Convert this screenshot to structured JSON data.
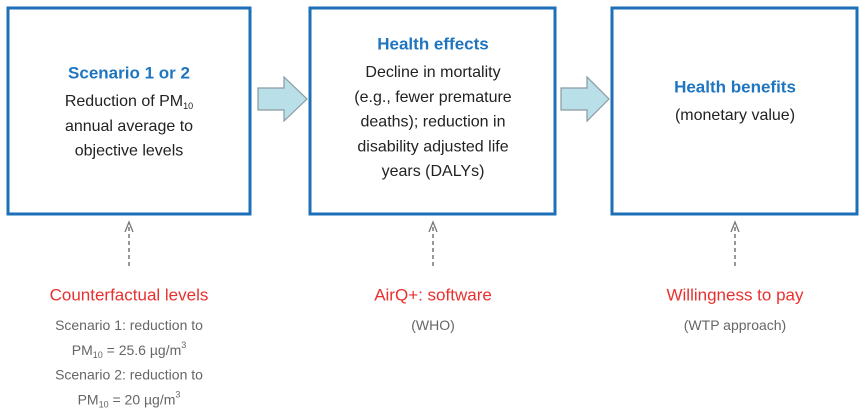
{
  "boxes": [
    {
      "title": "Scenario 1 or 2",
      "lines": [
        {
          "text": "Reduction of PM",
          "sub": "10"
        },
        {
          "text": "annual average to"
        },
        {
          "text": "objective levels"
        }
      ]
    },
    {
      "title": "Health effects",
      "lines": [
        {
          "text": "Decline in mortality"
        },
        {
          "text": "(e.g., fewer premature"
        },
        {
          "text": "deaths); reduction in"
        },
        {
          "text": "disability adjusted life"
        },
        {
          "text": "years (DALYs)"
        }
      ]
    },
    {
      "title": "Health benefits",
      "lines": [
        {
          "text": "(monetary value)"
        }
      ]
    }
  ],
  "inputs": [
    {
      "label": "Counterfactual levels",
      "notes": [
        {
          "text": "Scenario 1: reduction to"
        },
        {
          "text": "PM",
          "sub": "10",
          "post": " = 25.6 µg/m",
          "sup": "3"
        },
        {
          "text": "Scenario 2: reduction to"
        },
        {
          "text": "PM",
          "sub": "10",
          "post": " = 20 µg/m",
          "sup": "3"
        }
      ]
    },
    {
      "label": "AirQ+: software",
      "notes": [
        {
          "text": "(WHO)"
        }
      ]
    },
    {
      "label": "Willingness to pay",
      "notes": [
        {
          "text": "(WTP approach)"
        }
      ]
    }
  ]
}
